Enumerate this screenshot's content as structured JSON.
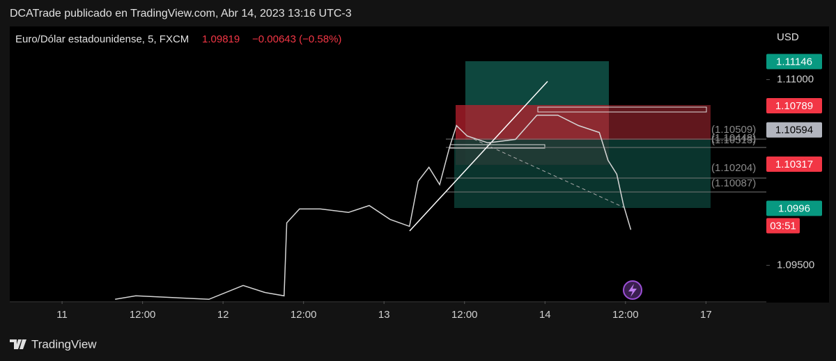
{
  "header": {
    "attribution": "DCATrade publicado en TradingView.com, Abr 14, 2023 13:16 UTC-3"
  },
  "legend": {
    "symbol": "Euro/Dólar estadounidense, 5, FXCM",
    "last": "1.09819",
    "change": "−0.00643 (−0.58%)"
  },
  "chart_data": {
    "type": "line",
    "currency": "USD",
    "x": [
      7.9,
      11,
      21.9,
      27,
      30.2,
      33.1,
      33.5,
      35.4,
      38.5,
      42.7,
      45.8,
      48.9,
      51.8,
      53.1,
      54.7,
      56.3,
      57.8,
      58.8,
      60.4,
      63.5,
      67.6,
      70.8,
      73.9,
      77,
      80.1,
      81.4,
      82.7,
      83.7,
      84.8
    ],
    "series": [
      {
        "name": "EURUSD",
        "color": "#d6d6d6",
        "values": [
          1.09225,
          1.09253,
          1.09225,
          1.09337,
          1.09281,
          1.09253,
          1.09843,
          1.09955,
          1.09955,
          1.09927,
          1.09983,
          1.09871,
          1.09815,
          1.1018,
          1.10292,
          1.10152,
          1.10461,
          1.10629,
          1.10545,
          1.10489,
          1.10517,
          1.10713,
          1.10713,
          1.10629,
          1.10573,
          1.10348,
          1.10236,
          1.09989,
          1.09787
        ]
      }
    ],
    "xlim": [
      -7.8,
      105
    ],
    "ylim": [
      1.0921,
      1.1143
    ],
    "xticks": [
      {
        "value": 0,
        "label": "11"
      },
      {
        "value": 12,
        "label": "12:00"
      },
      {
        "value": 24,
        "label": "12"
      },
      {
        "value": 36,
        "label": "12:00"
      },
      {
        "value": 48,
        "label": "13"
      },
      {
        "value": 60,
        "label": "12:00"
      },
      {
        "value": 72,
        "label": "14"
      },
      {
        "value": 84,
        "label": "12:00"
      },
      {
        "value": 96,
        "label": "17"
      }
    ],
    "yticks": [
      {
        "value": 1.095,
        "label": "1.09500"
      },
      {
        "value": 1.11,
        "label": "1.11000"
      }
    ],
    "price_tags": [
      {
        "value": 1.11146,
        "color": "#089981"
      },
      {
        "value": 1.10789,
        "color": "#f23645"
      },
      {
        "value": 1.10594,
        "color": "#b2b5be"
      },
      {
        "value": 1.10317,
        "color": "#f23645"
      },
      {
        "value": 1.0996,
        "color": "#089981"
      }
    ],
    "countdown": "03:51",
    "level_labels": [
      "(1.10509)",
      "(1.10448)",
      "(1.10513)",
      "(1.10204)",
      "(1.10087)"
    ]
  },
  "footer": {
    "brand": "TradingView"
  }
}
